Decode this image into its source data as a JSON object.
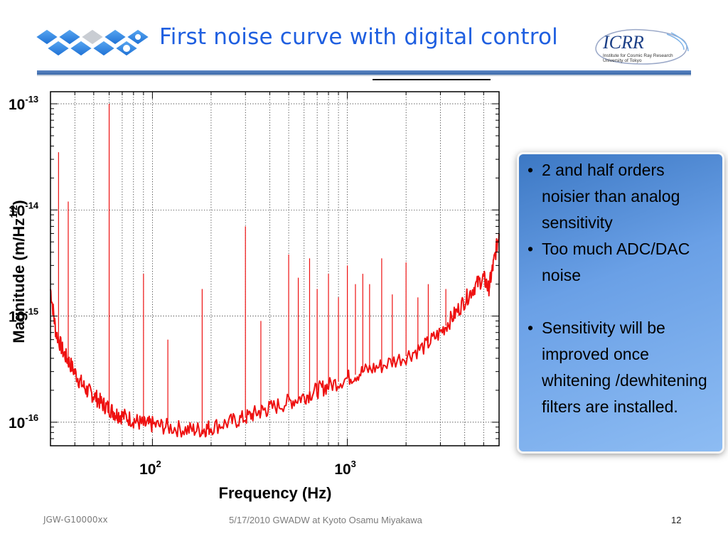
{
  "slide": {
    "title": "First noise curve with digital control",
    "logo_right_text": "ICRR",
    "logo_right_sub1": "Institute for Cosmic Ray Research",
    "logo_right_sub2": "University of Tokyo",
    "bullets": [
      "2 and half orders noisier than analog sensitivity",
      "Too much ADC/DAC noise",
      "",
      "Sensitivity will be improved once whitening /dewhitening filters are installed."
    ],
    "footer": {
      "left": "JGW-G10000xx",
      "center": "5/17/2010 GWADW at Kyoto Osamu Miyakawa",
      "page": "12"
    },
    "colors": {
      "title": "#1f5fe0",
      "curve": "#ee1111",
      "callout_start": "#3c78c4",
      "callout_end": "#8dbcf3",
      "rule": "#3c6aa9"
    }
  },
  "chart_data": {
    "type": "line",
    "title": "",
    "xlabel": "Frequency (Hz)",
    "ylabel": "Magnitude (m/Hz",
    "ylabel_sup": "1/2",
    "ylabel_end": ")",
    "xscale": "log",
    "yscale": "log",
    "xlim": [
      30,
      6000
    ],
    "ylim": [
      6e-17,
      1.3e-13
    ],
    "grid": true,
    "x_ticks": [
      {
        "value": 100,
        "base": "10",
        "exp": "2"
      },
      {
        "value": 1000,
        "base": "10",
        "exp": "3"
      }
    ],
    "y_ticks": [
      {
        "value": 1e-13,
        "base": "10",
        "exp": "-13"
      },
      {
        "value": 1e-14,
        "base": "10",
        "exp": "-14"
      },
      {
        "value": 1e-15,
        "base": "10",
        "exp": "-15"
      },
      {
        "value": 1e-16,
        "base": "10",
        "exp": "-16"
      }
    ],
    "series": [
      {
        "color": "#ee1111",
        "x": [
          30,
          32,
          35,
          38,
          42,
          46,
          50,
          55,
          60,
          65,
          70,
          80,
          90,
          100,
          120,
          150,
          180,
          200,
          250,
          300,
          350,
          400,
          500,
          600,
          700,
          800,
          1000,
          1200,
          1500,
          2000,
          2500,
          3000,
          3500,
          4000,
          4500,
          5000,
          5300,
          5600,
          6000
        ],
        "y": [
          1.8e-15,
          7e-16,
          4.5e-16,
          3.5e-16,
          2.5e-16,
          2e-16,
          1.8e-16,
          1.5e-16,
          1.35e-16,
          1.2e-16,
          1.15e-16,
          1.05e-16,
          9.5e-17,
          9.5e-17,
          9e-17,
          8.5e-17,
          8.5e-17,
          9e-17,
          1e-16,
          1.1e-16,
          1.25e-16,
          1.35e-16,
          1.55e-16,
          1.75e-16,
          2e-16,
          2.2e-16,
          2.6e-16,
          3e-16,
          3.4e-16,
          4.2e-16,
          5.2e-16,
          7e-16,
          1e-15,
          1.4e-15,
          1.9e-15,
          2.3e-15,
          1.8e-15,
          3e-15,
          6e-15
        ]
      }
    ],
    "peaks": [
      {
        "x": 33,
        "y": 3.5e-14
      },
      {
        "x": 37,
        "y": 1.2e-14
      },
      {
        "x": 60,
        "y": 1e-13
      },
      {
        "x": 90,
        "y": 2.5e-15
      },
      {
        "x": 120,
        "y": 6e-16
      },
      {
        "x": 180,
        "y": 1.8e-15
      },
      {
        "x": 300,
        "y": 7e-15
      },
      {
        "x": 360,
        "y": 9e-16
      },
      {
        "x": 500,
        "y": 3.8e-15
      },
      {
        "x": 560,
        "y": 2.3e-15
      },
      {
        "x": 640,
        "y": 3.5e-15
      },
      {
        "x": 700,
        "y": 1.8e-15
      },
      {
        "x": 800,
        "y": 2.5e-15
      },
      {
        "x": 900,
        "y": 1.5e-15
      },
      {
        "x": 1000,
        "y": 3e-15
      },
      {
        "x": 1100,
        "y": 2e-15
      },
      {
        "x": 1200,
        "y": 2.5e-15
      },
      {
        "x": 1300,
        "y": 2e-15
      },
      {
        "x": 1500,
        "y": 3.5e-15
      },
      {
        "x": 1700,
        "y": 1.6e-15
      },
      {
        "x": 2000,
        "y": 3.2e-15
      },
      {
        "x": 2300,
        "y": 1.5e-15
      },
      {
        "x": 2600,
        "y": 2e-15
      },
      {
        "x": 3200,
        "y": 1.8e-15
      }
    ]
  }
}
